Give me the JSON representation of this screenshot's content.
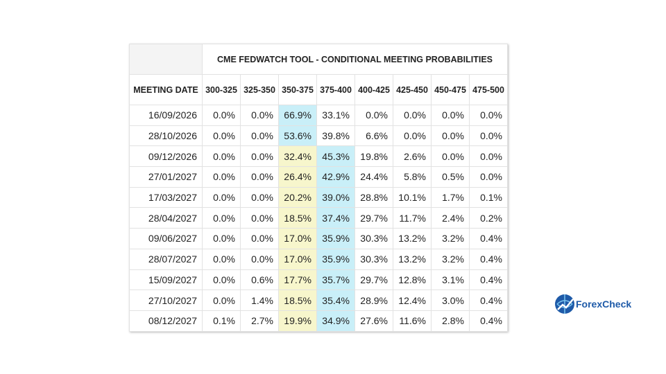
{
  "table": {
    "title": "CME FEDWATCH TOOL - CONDITIONAL MEETING PROBABILITIES",
    "columns": [
      "MEETING DATE",
      "300-325",
      "325-350",
      "350-375",
      "375-400",
      "400-425",
      "425-450",
      "450-475",
      "475-500"
    ],
    "rows": [
      [
        "16/09/2026",
        "0.0%",
        "0.0%",
        "66.9%",
        "33.1%",
        "0.0%",
        "0.0%",
        "0.0%",
        "0.0%"
      ],
      [
        "28/10/2026",
        "0.0%",
        "0.0%",
        "53.6%",
        "39.8%",
        "6.6%",
        "0.0%",
        "0.0%",
        "0.0%"
      ],
      [
        "09/12/2026",
        "0.0%",
        "0.0%",
        "32.4%",
        "45.3%",
        "19.8%",
        "2.6%",
        "0.0%",
        "0.0%"
      ],
      [
        "27/01/2027",
        "0.0%",
        "0.0%",
        "26.4%",
        "42.9%",
        "24.4%",
        "5.8%",
        "0.5%",
        "0.0%"
      ],
      [
        "17/03/2027",
        "0.0%",
        "0.0%",
        "20.2%",
        "39.0%",
        "28.8%",
        "10.1%",
        "1.7%",
        "0.1%"
      ],
      [
        "28/04/2027",
        "0.0%",
        "0.0%",
        "18.5%",
        "37.4%",
        "29.7%",
        "11.7%",
        "2.4%",
        "0.2%"
      ],
      [
        "09/06/2027",
        "0.0%",
        "0.0%",
        "17.0%",
        "35.9%",
        "30.3%",
        "13.2%",
        "3.2%",
        "0.4%"
      ],
      [
        "28/07/2027",
        "0.0%",
        "0.0%",
        "17.0%",
        "35.9%",
        "30.3%",
        "13.2%",
        "3.2%",
        "0.4%"
      ],
      [
        "15/09/2027",
        "0.0%",
        "0.6%",
        "17.7%",
        "35.7%",
        "29.7%",
        "12.8%",
        "3.1%",
        "0.4%"
      ],
      [
        "27/10/2027",
        "0.0%",
        "1.4%",
        "18.5%",
        "35.4%",
        "28.9%",
        "12.4%",
        "3.0%",
        "0.4%"
      ],
      [
        "08/12/2027",
        "0.1%",
        "2.7%",
        "19.9%",
        "34.9%",
        "27.6%",
        "11.6%",
        "2.8%",
        "0.4%"
      ]
    ],
    "current_range": "350-375",
    "highlight_colors": {
      "max": "#c9eff8",
      "current": "#f7f6cc"
    }
  },
  "logo": {
    "text_a": "Forex",
    "text_b": "Check"
  }
}
